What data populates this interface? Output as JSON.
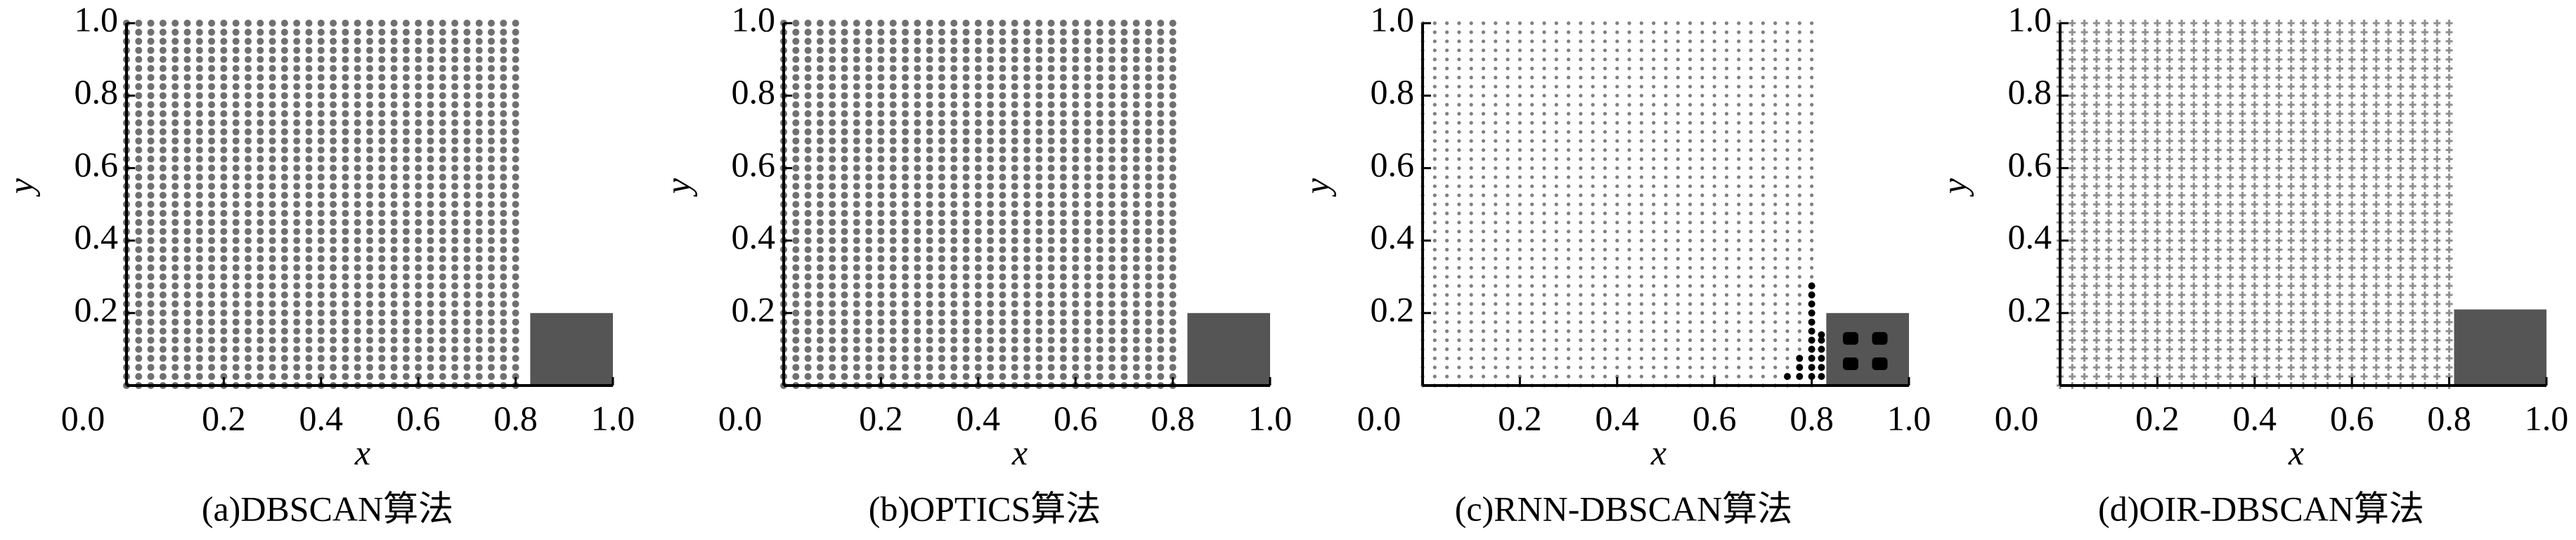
{
  "chart_data": [
    {
      "type": "scatter",
      "caption": "(a)DBSCAN算法",
      "xlabel": "x",
      "ylabel": "y",
      "marker": "dot",
      "marker_color": "#707070",
      "xlim": [
        0,
        1
      ],
      "ylim": [
        0,
        1
      ],
      "xticks": [
        {
          "value": 0,
          "label": "0.0"
        },
        0.2,
        0.4,
        0.6,
        0.8,
        {
          "value": 1,
          "label": "1.0"
        }
      ],
      "yticks": [
        0.2,
        0.4,
        0.6,
        0.8,
        {
          "value": 1,
          "label": "1.0"
        }
      ],
      "grid_x": [
        0,
        0.025,
        0.05,
        0.075,
        0.1,
        0.125,
        0.15,
        0.175,
        0.2,
        0.225,
        0.25,
        0.275,
        0.3,
        0.325,
        0.35,
        0.375,
        0.4,
        0.425,
        0.45,
        0.475,
        0.5,
        0.525,
        0.55,
        0.575,
        0.6,
        0.625,
        0.65,
        0.675,
        0.7,
        0.725,
        0.75,
        0.775,
        0.8
      ],
      "grid_y": [
        0,
        0.025,
        0.05,
        0.075,
        0.1,
        0.125,
        0.15,
        0.175,
        0.2,
        0.225,
        0.25,
        0.275,
        0.3,
        0.325,
        0.35,
        0.375,
        0.4,
        0.425,
        0.45,
        0.475,
        0.5,
        0.525,
        0.55,
        0.575,
        0.6,
        0.625,
        0.65,
        0.675,
        0.7,
        0.725,
        0.75,
        0.775,
        0.8,
        0.825,
        0.85,
        0.875,
        0.9,
        0.925,
        0.95,
        0.975,
        1
      ],
      "region": {
        "x": [
          0.83,
          1.0
        ],
        "y": [
          0,
          0.2
        ],
        "color": "#555555"
      }
    },
    {
      "type": "scatter",
      "caption": "(b)OPTICS算法",
      "xlabel": "x",
      "ylabel": "y",
      "marker": "dot",
      "marker_color": "#707070",
      "xlim": [
        0,
        1
      ],
      "ylim": [
        0,
        1
      ],
      "xticks": [
        {
          "value": 0,
          "label": "0.0"
        },
        0.2,
        0.4,
        0.6,
        0.8,
        {
          "value": 1,
          "label": "1.0"
        }
      ],
      "yticks": [
        0.2,
        0.4,
        0.6,
        0.8,
        {
          "value": 1,
          "label": "1.0"
        }
      ],
      "grid_x": [
        0,
        0.025,
        0.05,
        0.075,
        0.1,
        0.125,
        0.15,
        0.175,
        0.2,
        0.225,
        0.25,
        0.275,
        0.3,
        0.325,
        0.35,
        0.375,
        0.4,
        0.425,
        0.45,
        0.475,
        0.5,
        0.525,
        0.55,
        0.575,
        0.6,
        0.625,
        0.65,
        0.675,
        0.7,
        0.725,
        0.75,
        0.775,
        0.8
      ],
      "grid_y": [
        0,
        0.025,
        0.05,
        0.075,
        0.1,
        0.125,
        0.15,
        0.175,
        0.2,
        0.225,
        0.25,
        0.275,
        0.3,
        0.325,
        0.35,
        0.375,
        0.4,
        0.425,
        0.45,
        0.475,
        0.5,
        0.525,
        0.55,
        0.575,
        0.6,
        0.625,
        0.65,
        0.675,
        0.7,
        0.725,
        0.75,
        0.775,
        0.8,
        0.825,
        0.85,
        0.875,
        0.9,
        0.925,
        0.95,
        0.975,
        1
      ],
      "region": {
        "x": [
          0.83,
          1.0
        ],
        "y": [
          0,
          0.2
        ],
        "color": "#555555"
      }
    },
    {
      "type": "scatter",
      "caption": "(c)RNN-DBSCAN算法",
      "xlabel": "x",
      "ylabel": "y",
      "marker": "small",
      "marker_color": "#808080",
      "xlim": [
        0,
        1
      ],
      "ylim": [
        0,
        1
      ],
      "xticks": [
        {
          "value": 0,
          "label": "0.0"
        },
        0.2,
        0.4,
        0.6,
        0.8,
        {
          "value": 1,
          "label": "1.0"
        }
      ],
      "yticks": [
        0.2,
        0.4,
        0.6,
        0.8,
        {
          "value": 1,
          "label": "1.0"
        }
      ],
      "grid_x": [
        0,
        0.025,
        0.05,
        0.075,
        0.1,
        0.125,
        0.15,
        0.175,
        0.2,
        0.225,
        0.25,
        0.275,
        0.3,
        0.325,
        0.35,
        0.375,
        0.4,
        0.425,
        0.45,
        0.475,
        0.5,
        0.525,
        0.55,
        0.575,
        0.6,
        0.625,
        0.65,
        0.675,
        0.7,
        0.725,
        0.75,
        0.775,
        0.8
      ],
      "grid_y": [
        0,
        0.025,
        0.05,
        0.075,
        0.1,
        0.125,
        0.15,
        0.175,
        0.2,
        0.225,
        0.25,
        0.275,
        0.3,
        0.325,
        0.35,
        0.375,
        0.4,
        0.425,
        0.45,
        0.475,
        0.5,
        0.525,
        0.55,
        0.575,
        0.6,
        0.625,
        0.65,
        0.675,
        0.7,
        0.725,
        0.75,
        0.775,
        0.8,
        0.825,
        0.85,
        0.875,
        0.9,
        0.925,
        0.95,
        0.975,
        1
      ],
      "region": {
        "x": [
          0.83,
          1.0
        ],
        "y": [
          0,
          0.2
        ],
        "color": "#555555"
      },
      "highlight": {
        "color": "#000000",
        "x": [
          0.75,
          0.775,
          0.775,
          0.775,
          0.8,
          0.8,
          0.8,
          0.8,
          0.8,
          0.8,
          0.8,
          0.8,
          0.8,
          0.8,
          0.8,
          0.82,
          0.82,
          0.82,
          0.82,
          0.82,
          0.82
        ],
        "y": [
          0.025,
          0.025,
          0.05,
          0.075,
          0.025,
          0.05,
          0.075,
          0.1,
          0.125,
          0.15,
          0.175,
          0.2,
          0.225,
          0.25,
          0.275,
          0.025,
          0.05,
          0.075,
          0.1,
          0.125,
          0.14
        ]
      },
      "centers": {
        "color": "#000000",
        "x": [
          0.88,
          0.94,
          0.88,
          0.94
        ],
        "y": [
          0.13,
          0.13,
          0.06,
          0.06
        ]
      }
    },
    {
      "type": "scatter",
      "caption": "(d)OIR-DBSCAN算法",
      "xlabel": "x",
      "ylabel": "y",
      "marker": "plus",
      "marker_color": "#909090",
      "xlim": [
        0,
        1
      ],
      "ylim": [
        0,
        1
      ],
      "xticks": [
        {
          "value": 0,
          "label": "0.0"
        },
        0.2,
        0.4,
        0.6,
        0.8,
        {
          "value": 1,
          "label": "1.0"
        }
      ],
      "yticks": [
        0.2,
        0.4,
        0.6,
        0.8,
        {
          "value": 1,
          "label": "1.0"
        }
      ],
      "grid_x": [
        0,
        0.025,
        0.05,
        0.075,
        0.1,
        0.125,
        0.15,
        0.175,
        0.2,
        0.225,
        0.25,
        0.275,
        0.3,
        0.325,
        0.35,
        0.375,
        0.4,
        0.425,
        0.45,
        0.475,
        0.5,
        0.525,
        0.55,
        0.575,
        0.6,
        0.625,
        0.65,
        0.675,
        0.7,
        0.725,
        0.75,
        0.775,
        0.8
      ],
      "grid_y": [
        0,
        0.025,
        0.05,
        0.075,
        0.1,
        0.125,
        0.15,
        0.175,
        0.2,
        0.225,
        0.25,
        0.275,
        0.3,
        0.325,
        0.35,
        0.375,
        0.4,
        0.425,
        0.45,
        0.475,
        0.5,
        0.525,
        0.55,
        0.575,
        0.6,
        0.625,
        0.65,
        0.675,
        0.7,
        0.725,
        0.75,
        0.775,
        0.8,
        0.825,
        0.85,
        0.875,
        0.9,
        0.925,
        0.95,
        0.975,
        1
      ],
      "region": {
        "x": [
          0.81,
          1.0
        ],
        "y": [
          0,
          0.21
        ],
        "color": "#555555"
      }
    }
  ]
}
